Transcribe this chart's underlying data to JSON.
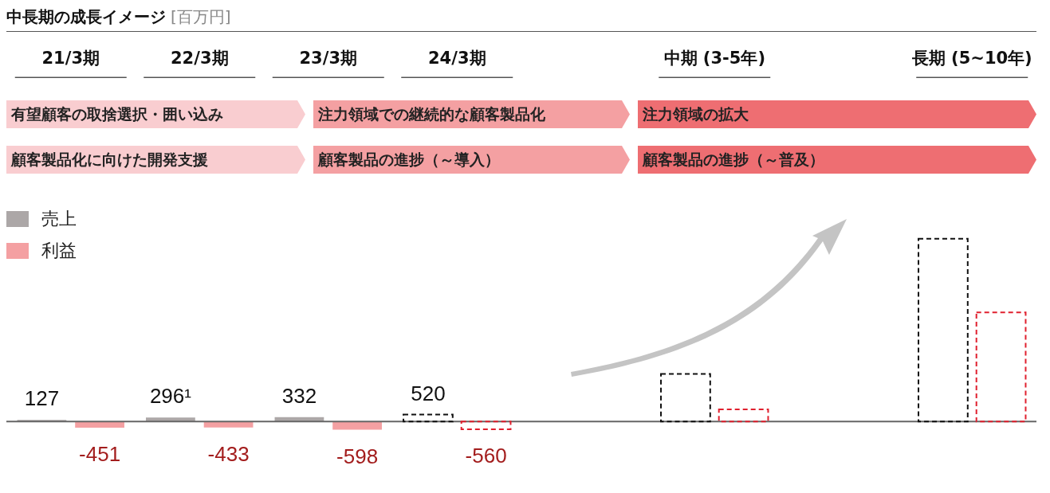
{
  "chart_data": {
    "type": "bar",
    "title": "中長期の成長イメージ",
    "subtitle": "[百万円]",
    "categories": [
      "21/3期",
      "22/3期",
      "23/3期",
      "24/3期",
      null,
      "中期 (3-5年)",
      null,
      "長期 (5~10年)"
    ],
    "series": [
      {
        "name": "売上",
        "color": "#aca7a7",
        "values": [
          127,
          296,
          332,
          null,
          null,
          null,
          null,
          null
        ],
        "value_labels": [
          "127",
          "296¹",
          "332",
          null,
          null,
          null,
          null,
          null
        ]
      },
      {
        "name": "利益",
        "color": "#f4a0a2",
        "values": [
          -451,
          -433,
          -598,
          null,
          null,
          null,
          null,
          null
        ],
        "value_labels": [
          "-451",
          "-433",
          "-598",
          null,
          null,
          null,
          null,
          null
        ]
      },
      {
        "color": "#111111",
        "line_style": "dashed",
        "values": [
          null,
          null,
          null,
          520,
          null,
          3500,
          null,
          13400
        ],
        "value_labels": [
          null,
          null,
          null,
          "520",
          null,
          null,
          null,
          null
        ]
      },
      {
        "color": "#e0202e",
        "line_style": "dashed",
        "values": [
          null,
          null,
          null,
          -560,
          null,
          900,
          null,
          8000
        ],
        "value_labels": [
          null,
          null,
          null,
          "-560",
          null,
          null,
          null,
          null
        ]
      }
    ],
    "ref_lines": [
      {
        "axis": "y",
        "value": 0,
        "color": "#666666"
      }
    ],
    "legend": "top left",
    "annotations": [
      "有望顧客の取捨選択・囲い込み",
      "注力領域での継続的な顧客製品化",
      "注力領域の拡大",
      "顧客製品化に向けた開発支援",
      "顧客製品の進捗（～導入）",
      "顧客製品の進捗（～普及）"
    ]
  }
}
